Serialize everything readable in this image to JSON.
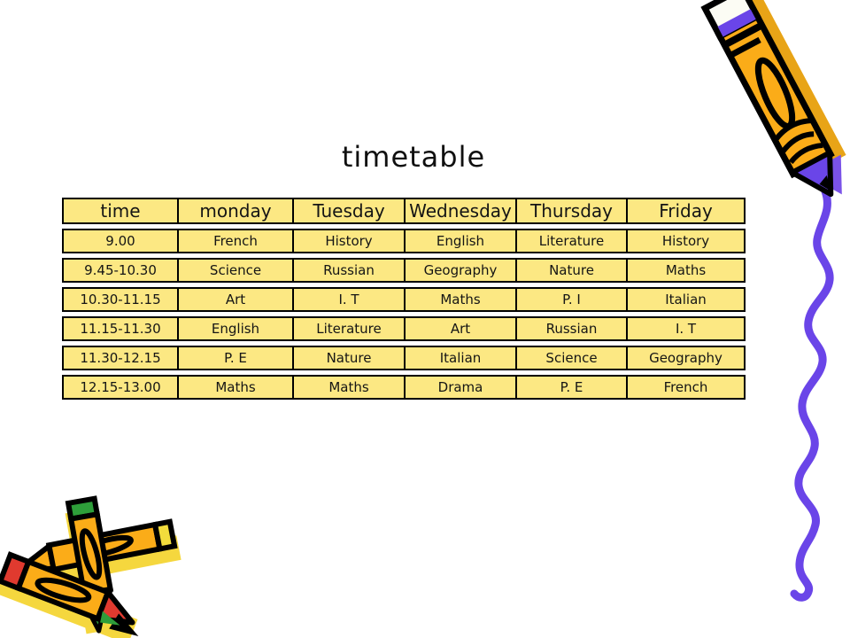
{
  "slide": {
    "title": "timetable"
  },
  "table": {
    "columns": [
      "time",
      "monday",
      "Tuesday",
      "Wednesday",
      "Thursday",
      "Friday"
    ],
    "rows": [
      [
        "9.00",
        "French",
        "History",
        "English",
        "Literature",
        "History"
      ],
      [
        "9.45-10.30",
        "Science",
        "Russian",
        "Geography",
        "Nature",
        "Maths"
      ],
      [
        "10.30-11.15",
        "Art",
        "I. T",
        "Maths",
        "P. I",
        "Italian"
      ],
      [
        "11.15-11.30",
        "English",
        "Literature",
        "Art",
        "Russian",
        "I. T"
      ],
      [
        "11.30-12.15",
        "P. E",
        "Nature",
        "Italian",
        "Science",
        "Geography"
      ],
      [
        "12.15-13.00",
        "Maths",
        "Maths",
        "Drama",
        "P. E",
        "French"
      ]
    ]
  },
  "decorations": {
    "top_right": "pencil-drawing-squiggle-icon",
    "bottom_left": "crossed-crayons-icon"
  },
  "colors": {
    "bg": "#ffffff",
    "table_fill": "#FCE883",
    "table_border": "#000000",
    "squiggle": "#6A45E8",
    "pencil_body": "#FBAC18",
    "pencil_tip_purple": "#6A45E8",
    "crayon_body": "#FBAC18",
    "crayon_red": "#E03A2F",
    "crayon_green": "#2E9E3A",
    "crayon_yellow_cap": "#F2DC3C",
    "shadow_yellow": "#F5D73E"
  }
}
